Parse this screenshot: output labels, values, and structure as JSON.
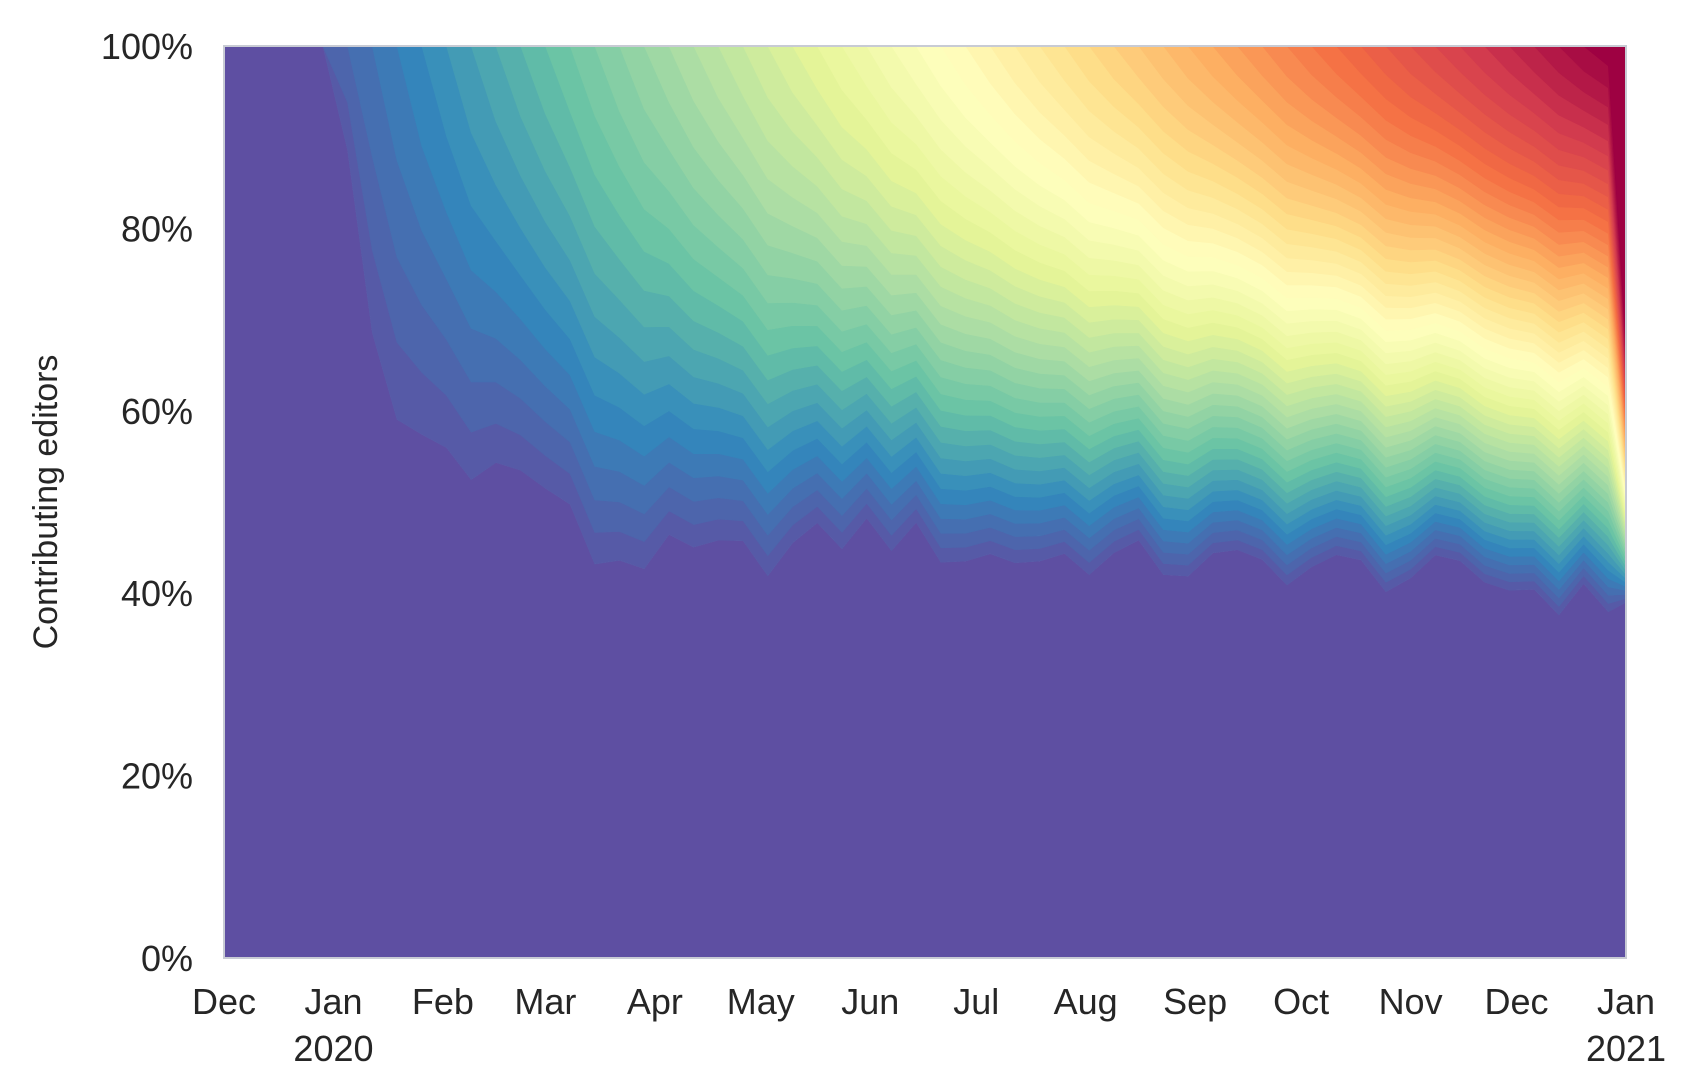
{
  "chart_data": {
    "type": "area",
    "stacked": true,
    "normalized": true,
    "ylabel": "Contributing editors",
    "xlabel": "",
    "title": "",
    "ylim": [
      0,
      100
    ],
    "yticks": [
      "0%",
      "20%",
      "40%",
      "60%",
      "80%",
      "100%"
    ],
    "xlim": [
      "2019-12-01",
      "2021-01-01"
    ],
    "xticks": [
      {
        "date": "2019-12-01",
        "label": "Dec",
        "sublabel": ""
      },
      {
        "date": "2020-01-01",
        "label": "Jan",
        "sublabel": "2020"
      },
      {
        "date": "2020-02-01",
        "label": "Feb",
        "sublabel": ""
      },
      {
        "date": "2020-03-01",
        "label": "Mar",
        "sublabel": ""
      },
      {
        "date": "2020-04-01",
        "label": "Apr",
        "sublabel": ""
      },
      {
        "date": "2020-05-01",
        "label": "May",
        "sublabel": ""
      },
      {
        "date": "2020-06-01",
        "label": "Jun",
        "sublabel": ""
      },
      {
        "date": "2020-07-01",
        "label": "Jul",
        "sublabel": ""
      },
      {
        "date": "2020-08-01",
        "label": "Aug",
        "sublabel": ""
      },
      {
        "date": "2020-09-01",
        "label": "Sep",
        "sublabel": ""
      },
      {
        "date": "2020-10-01",
        "label": "Oct",
        "sublabel": ""
      },
      {
        "date": "2020-11-01",
        "label": "Nov",
        "sublabel": ""
      },
      {
        "date": "2020-12-01",
        "label": "Dec",
        "sublabel": ""
      },
      {
        "date": "2021-01-01",
        "label": "Jan",
        "sublabel": "2021"
      }
    ],
    "grid": false,
    "legend": "none",
    "colormap": "Spectral",
    "series_note": "one cohort per week of first contribution; earliest cohort bottom, latest top",
    "base_cohort_share": {
      "x": [
        "2019-12-01",
        "2020-01-01",
        "2020-01-15",
        "2020-02-01",
        "2020-02-15",
        "2020-03-01",
        "2020-03-15",
        "2020-04-01",
        "2020-05-01",
        "2020-06-01",
        "2020-07-01",
        "2020-08-01",
        "2020-09-01",
        "2020-10-01",
        "2020-11-01",
        "2020-12-01",
        "2020-12-20",
        "2021-01-01"
      ],
      "y": [
        100,
        100,
        60,
        56,
        54,
        52,
        44,
        44,
        44,
        47,
        44,
        44,
        43,
        43,
        42,
        41,
        39,
        39
      ]
    },
    "latest_cohort_share_end": 33
  }
}
